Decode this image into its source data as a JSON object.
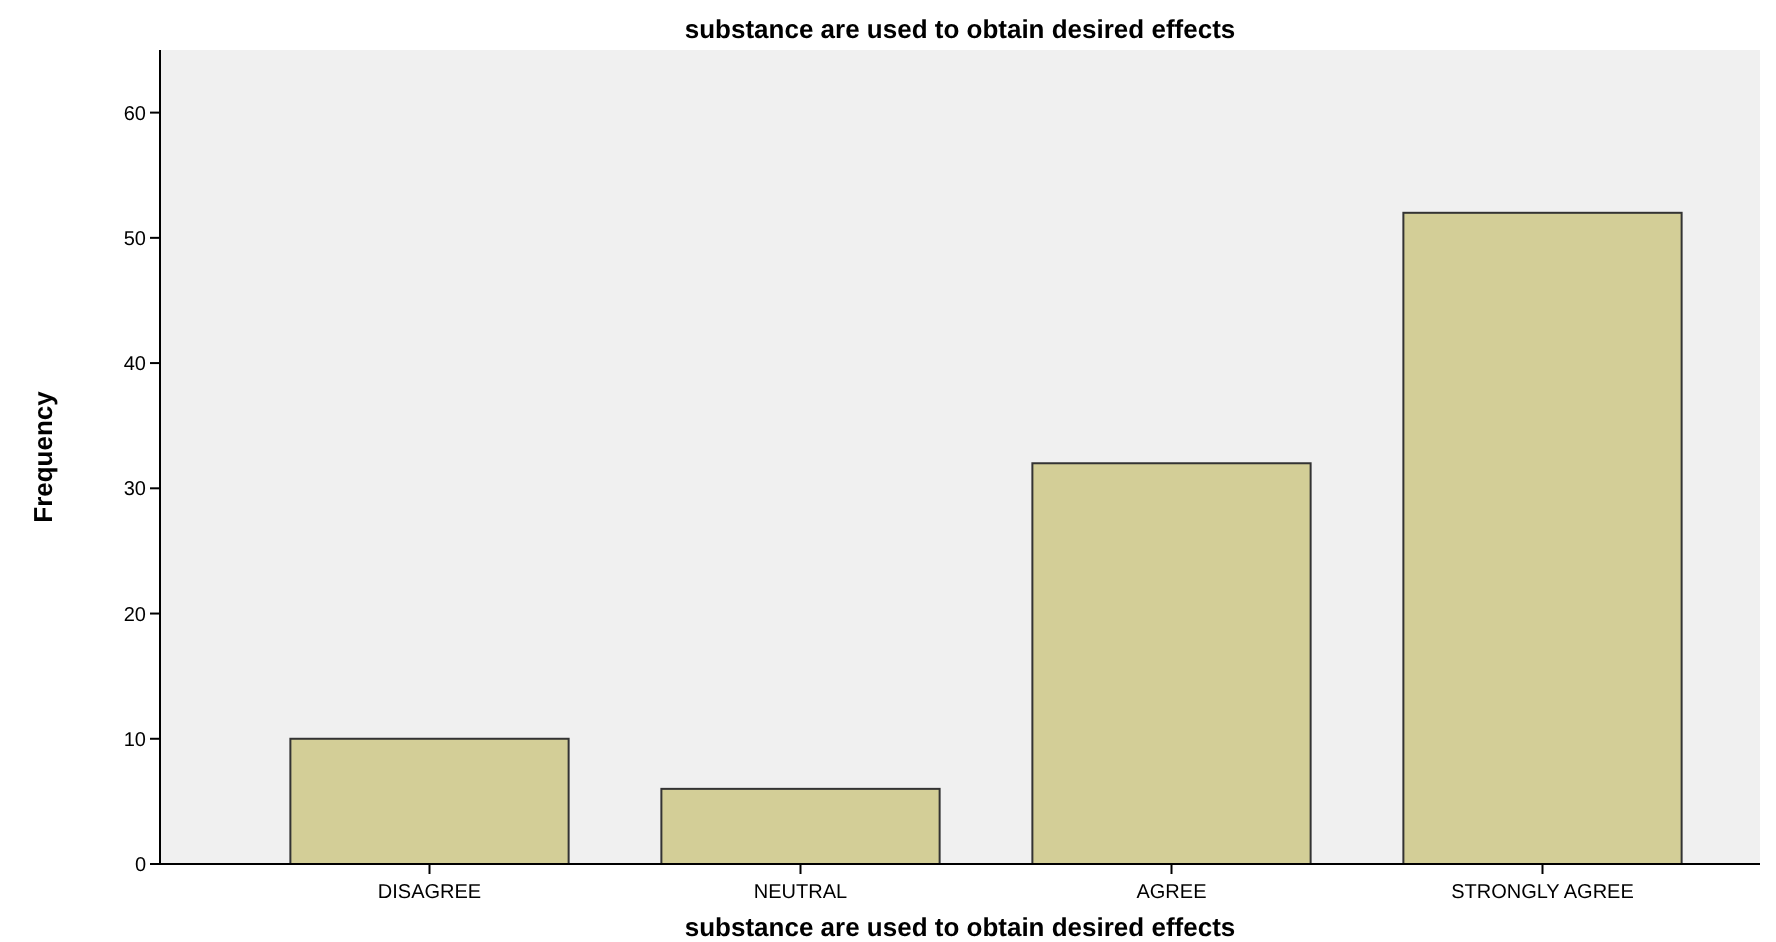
{
  "chart_data": {
    "type": "bar",
    "title": "substance are used to obtain desired effects",
    "xlabel": "substance are used to obtain desired effects",
    "ylabel": "Frequency",
    "categories": [
      "DISAGREE",
      "NEUTRAL",
      "AGREE",
      "STRONGLY AGREE"
    ],
    "values": [
      10,
      6,
      32,
      52
    ],
    "color": "#d3ce97",
    "ylim": [
      0,
      65
    ],
    "yticks": [
      0,
      10,
      20,
      30,
      40,
      50,
      60
    ],
    "grid": false
  }
}
